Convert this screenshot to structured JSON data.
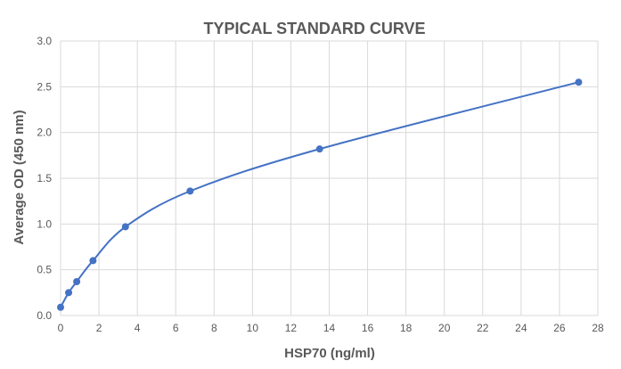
{
  "chart_data": {
    "type": "scatter",
    "title": "TYPICAL STANDARD CURVE",
    "xlabel": "HSP70 (ng/ml)",
    "ylabel": "Average OD (450 nm)",
    "xlim": [
      0,
      28
    ],
    "ylim": [
      0,
      3.0
    ],
    "xticks": [
      "0",
      "2",
      "4",
      "6",
      "8",
      "10",
      "12",
      "14",
      "16",
      "18",
      "20",
      "22",
      "24",
      "26",
      "28"
    ],
    "yticks": [
      "0.0",
      "0.5",
      "1.0",
      "1.5",
      "2.0",
      "2.5",
      "3.0"
    ],
    "grid": true,
    "smooth_line": true,
    "series": [
      {
        "color": "#4472c4",
        "x": [
          0,
          0.42,
          0.84,
          1.69,
          3.38,
          6.75,
          13.5,
          27
        ],
        "y": [
          0.09,
          0.25,
          0.37,
          0.6,
          0.97,
          1.36,
          1.82,
          2.55
        ]
      }
    ]
  }
}
